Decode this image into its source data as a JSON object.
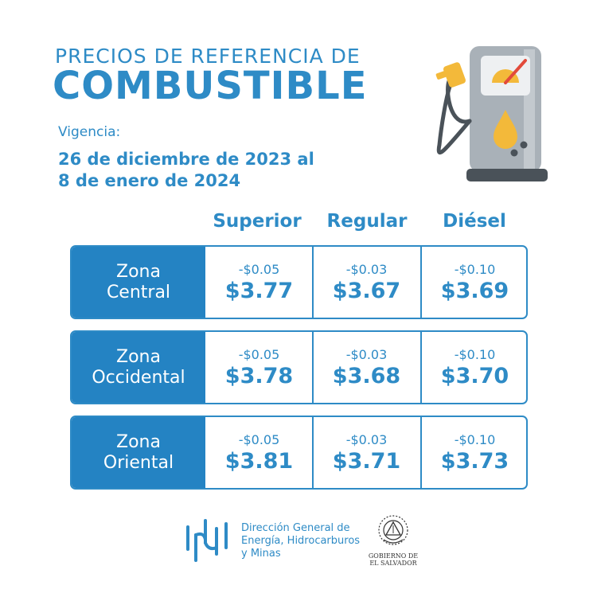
{
  "header": {
    "title_top": "PRECIOS DE REFERENCIA DE",
    "title_main": "COMBUSTIBLE",
    "validity_label": "Vigencia:",
    "validity_line1": "26 de diciembre de 2023 al",
    "validity_line2": "8 de enero de 2024"
  },
  "columns": [
    "Superior",
    "Regular",
    "Diésel"
  ],
  "rows": [
    {
      "zone_line1": "Zona",
      "zone_line2": "Central",
      "cells": [
        {
          "delta": "-$0.05",
          "price": "$3.77"
        },
        {
          "delta": "-$0.03",
          "price": "$3.67"
        },
        {
          "delta": "-$0.10",
          "price": "$3.69"
        }
      ]
    },
    {
      "zone_line1": "Zona",
      "zone_line2": "Occidental",
      "cells": [
        {
          "delta": "-$0.05",
          "price": "$3.78"
        },
        {
          "delta": "-$0.03",
          "price": "$3.68"
        },
        {
          "delta": "-$0.10",
          "price": "$3.70"
        }
      ]
    },
    {
      "zone_line1": "Zona",
      "zone_line2": "Oriental",
      "cells": [
        {
          "delta": "-$0.05",
          "price": "$3.81"
        },
        {
          "delta": "-$0.03",
          "price": "$3.71"
        },
        {
          "delta": "-$0.10",
          "price": "$3.73"
        }
      ]
    }
  ],
  "footer": {
    "agency_line1": "Dirección General de",
    "agency_line2": "Energía, Hidrocarburos",
    "agency_line3": "y Minas",
    "gov_line1": "GOBIERNO DE",
    "gov_line2": "EL SALVADOR"
  },
  "colors": {
    "accent": "#2e8bc6",
    "zone_fill": "#2483c3",
    "pump_gray": "#a9b1b8",
    "pump_dark": "#4a5259",
    "fuel_yellow": "#f3b93a"
  },
  "icons": {
    "pump": "fuel-pump-icon",
    "agency_logo": "dgehm-logo-icon",
    "seal": "el-salvador-seal-icon"
  }
}
